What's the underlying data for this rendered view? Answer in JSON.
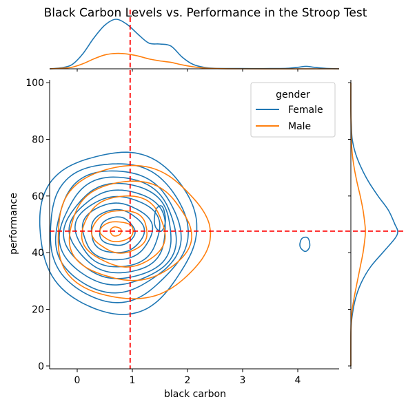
{
  "chart_data": {
    "type": "contour",
    "title": "Black Carbon Levels vs. Performance in the Stroop Test",
    "xlabel": "black carbon",
    "ylabel": "performance",
    "xlim": [
      -0.5,
      4.75
    ],
    "ylim": [
      -1,
      101
    ],
    "x_ticks": [
      0,
      1,
      2,
      3,
      4
    ],
    "y_ticks": [
      0,
      20,
      40,
      60,
      80,
      100
    ],
    "grid": false,
    "legend": {
      "title": "gender",
      "position": "top-right",
      "entries": [
        {
          "label": "Female",
          "color": "#1f77b4"
        },
        {
          "label": "Male",
          "color": "#ff7f0e"
        }
      ]
    },
    "reference_lines": {
      "vertical_x": 0.96,
      "horizontal_y": 47.6,
      "color": "#ff0000",
      "style": "dashed"
    },
    "series": [
      {
        "name": "Female",
        "color": "#1f77b4",
        "contours": [
          {
            "cx": 0.72,
            "cy": 47.5,
            "rx": 1.42,
            "ry": 28.5
          },
          {
            "cx": 0.72,
            "cy": 47.5,
            "rx": 1.25,
            "ry": 24.5
          },
          {
            "cx": 0.72,
            "cy": 47.5,
            "rx": 1.13,
            "ry": 21.5
          },
          {
            "cx": 0.74,
            "cy": 47.5,
            "rx": 1.05,
            "ry": 19.0
          },
          {
            "cx": 0.76,
            "cy": 47.5,
            "rx": 0.97,
            "ry": 16.8
          },
          {
            "cx": 0.76,
            "cy": 47.5,
            "rx": 0.87,
            "ry": 14.6
          },
          {
            "cx": 0.74,
            "cy": 47.5,
            "rx": 0.76,
            "ry": 12.4
          },
          {
            "cx": 0.72,
            "cy": 47.5,
            "rx": 0.63,
            "ry": 10.0
          },
          {
            "cx": 0.72,
            "cy": 47.5,
            "rx": 0.48,
            "ry": 7.6
          },
          {
            "cx": 0.72,
            "cy": 47.5,
            "rx": 0.32,
            "ry": 5.0
          },
          {
            "cx": 1.5,
            "cy": 52.0,
            "rx": 0.1,
            "ry": 4.5
          },
          {
            "cx": 4.13,
            "cy": 43.0,
            "rx": 0.09,
            "ry": 2.5
          }
        ],
        "x_marginal": {
          "x": [
            -0.5,
            -0.3,
            -0.1,
            0.1,
            0.3,
            0.5,
            0.7,
            0.9,
            1.1,
            1.3,
            1.5,
            1.7,
            1.9,
            2.1,
            2.3,
            2.5,
            3.0,
            3.5,
            3.8,
            4.0,
            4.15,
            4.3,
            4.5,
            4.75
          ],
          "density": [
            0.0,
            0.02,
            0.08,
            0.3,
            0.62,
            0.88,
            1.0,
            0.9,
            0.7,
            0.52,
            0.5,
            0.46,
            0.24,
            0.09,
            0.03,
            0.01,
            0.005,
            0.005,
            0.01,
            0.03,
            0.05,
            0.03,
            0.01,
            0.0
          ]
        },
        "y_marginal": {
          "y": [
            0,
            10,
            15,
            20,
            25,
            30,
            35,
            40,
            45,
            47.5,
            50,
            55,
            60,
            65,
            70,
            75,
            80,
            85,
            90,
            100
          ],
          "density": [
            0.0,
            0.0,
            0.01,
            0.05,
            0.12,
            0.24,
            0.42,
            0.68,
            0.94,
            1.0,
            0.94,
            0.8,
            0.58,
            0.38,
            0.22,
            0.1,
            0.03,
            0.01,
            0.0,
            0.0
          ]
        }
      },
      {
        "name": "Male",
        "color": "#ff7f0e",
        "contours": [
          {
            "cx": 0.98,
            "cy": 47.0,
            "rx": 1.38,
            "ry": 23.5
          },
          {
            "cx": 0.95,
            "cy": 47.5,
            "rx": 1.1,
            "ry": 17.5
          },
          {
            "cx": 0.85,
            "cy": 47.5,
            "rx": 0.75,
            "ry": 12.5
          },
          {
            "cx": 0.78,
            "cy": 47.5,
            "rx": 0.5,
            "ry": 7.5
          },
          {
            "cx": 0.72,
            "cy": 47.5,
            "rx": 0.3,
            "ry": 3.5
          },
          {
            "cx": 0.7,
            "cy": 47.5,
            "rx": 0.1,
            "ry": 1.6
          }
        ],
        "x_marginal": {
          "x": [
            -0.5,
            -0.3,
            -0.1,
            0.1,
            0.3,
            0.5,
            0.7,
            0.9,
            1.1,
            1.3,
            1.5,
            1.7,
            1.9,
            2.1,
            2.3,
            2.5,
            3.0,
            4.75
          ],
          "density": [
            0.0,
            0.01,
            0.03,
            0.1,
            0.2,
            0.28,
            0.31,
            0.3,
            0.26,
            0.2,
            0.16,
            0.13,
            0.08,
            0.04,
            0.015,
            0.005,
            0.0,
            0.0
          ]
        },
        "y_marginal": {
          "y": [
            0,
            10,
            15,
            20,
            25,
            30,
            35,
            40,
            45,
            47.5,
            50,
            55,
            60,
            65,
            70,
            75,
            80,
            90,
            100
          ],
          "density": [
            0.0,
            0.0,
            0.005,
            0.03,
            0.08,
            0.14,
            0.2,
            0.26,
            0.3,
            0.31,
            0.3,
            0.26,
            0.2,
            0.13,
            0.07,
            0.03,
            0.01,
            0.0,
            0.0
          ]
        }
      }
    ]
  }
}
